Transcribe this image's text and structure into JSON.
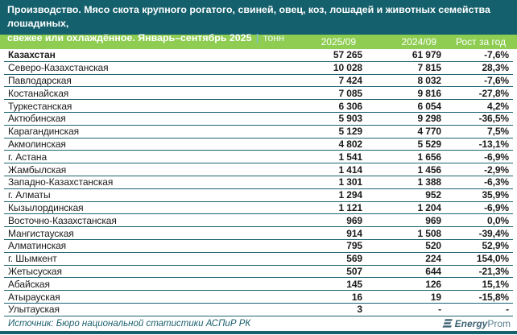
{
  "title": {
    "line1": "Производство. Мясо скота крупного рогатого, свиней, овец, коз, лошадей и животных семейства лошадиных,",
    "line2": "свежее или охлаждённое. Январь–сентябрь 2025",
    "separator": "|",
    "unit": "тонн"
  },
  "chart_data": {
    "type": "table",
    "title": "Производство. Мясо скота крупного рогатого, свиней, овец, коз, лошадей и животных семейства лошадиных, свежее или охлаждённое. Январь–сентябрь 2025, тонн",
    "columns": [
      "2025/09",
      "2024/09",
      "Рост за год"
    ],
    "rows": [
      {
        "name": "Казахстан",
        "v2025": "57 265",
        "v2024": "61 979",
        "growth": "-7,6%",
        "bold": true
      },
      {
        "name": "Северо-Казахстанская",
        "v2025": "10 028",
        "v2024": "7 815",
        "growth": "28,3%",
        "bold": false
      },
      {
        "name": "Павлодарская",
        "v2025": "7 424",
        "v2024": "8 032",
        "growth": "-7,6%",
        "bold": false
      },
      {
        "name": "Костанайская",
        "v2025": "7 085",
        "v2024": "9 816",
        "growth": "-27,8%",
        "bold": false
      },
      {
        "name": "Туркестанская",
        "v2025": "6 306",
        "v2024": "6 054",
        "growth": "4,2%",
        "bold": false
      },
      {
        "name": "Актюбинская",
        "v2025": "5 903",
        "v2024": "9 298",
        "growth": "-36,5%",
        "bold": false
      },
      {
        "name": "Карагандинская",
        "v2025": "5 129",
        "v2024": "4 770",
        "growth": "7,5%",
        "bold": false
      },
      {
        "name": "Акмолинская",
        "v2025": "4 802",
        "v2024": "5 529",
        "growth": "-13,1%",
        "bold": false
      },
      {
        "name": "г. Астана",
        "v2025": "1 541",
        "v2024": "1 656",
        "growth": "-6,9%",
        "bold": false
      },
      {
        "name": "Жамбылская",
        "v2025": "1 414",
        "v2024": "1 456",
        "growth": "-2,9%",
        "bold": false
      },
      {
        "name": "Западно-Казахстанская",
        "v2025": "1 301",
        "v2024": "1 388",
        "growth": "-6,3%",
        "bold": false
      },
      {
        "name": "г. Алматы",
        "v2025": "1 294",
        "v2024": "952",
        "growth": "35,9%",
        "bold": false
      },
      {
        "name": "Кызылординская",
        "v2025": "1 121",
        "v2024": "1 204",
        "growth": "-6,9%",
        "bold": false
      },
      {
        "name": "Восточно-Казахстанская",
        "v2025": "969",
        "v2024": "969",
        "growth": "0,0%",
        "bold": false
      },
      {
        "name": "Мангистауская",
        "v2025": "914",
        "v2024": "1 508",
        "growth": "-39,4%",
        "bold": false
      },
      {
        "name": "Алматинская",
        "v2025": "795",
        "v2024": "520",
        "growth": "52,9%",
        "bold": false
      },
      {
        "name": "г. Шымкент",
        "v2025": "569",
        "v2024": "224",
        "growth": "154,0%",
        "bold": false
      },
      {
        "name": "Жетысуская",
        "v2025": "507",
        "v2024": "644",
        "growth": "-21,3%",
        "bold": false
      },
      {
        "name": "Абайская",
        "v2025": "145",
        "v2024": "126",
        "growth": "15,1%",
        "bold": false
      },
      {
        "name": "Атырауская",
        "v2025": "16",
        "v2024": "19",
        "growth": "-15,8%",
        "bold": false
      },
      {
        "name": "Улытауская",
        "v2025": "3",
        "v2024": "-",
        "growth": "-",
        "bold": false
      }
    ]
  },
  "footer": {
    "source": "Источник: Бюро национальной статистики АСПиР РК",
    "logo_bold": "Energy",
    "logo_light": "Prom"
  },
  "colors": {
    "teal": "#15606d",
    "green": "#8ecd52",
    "row_border": "#1e6472",
    "logo": "#3d6375"
  }
}
